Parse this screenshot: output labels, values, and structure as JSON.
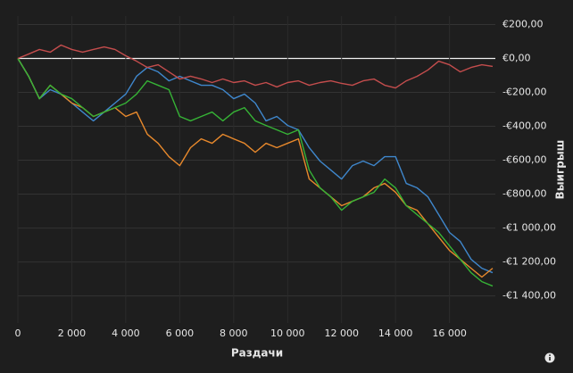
{
  "chart_data": {
    "type": "line",
    "x_label": "Раздачи",
    "y_label": "Выигрыш",
    "x": [
      0,
      400,
      800,
      1200,
      1600,
      2000,
      2400,
      2800,
      3200,
      3600,
      4000,
      4400,
      4800,
      5200,
      5600,
      6000,
      6400,
      6800,
      7200,
      7600,
      8000,
      8400,
      8800,
      9200,
      9600,
      10000,
      10400,
      10800,
      11200,
      11600,
      12000,
      12400,
      12800,
      13200,
      13600,
      14000,
      14400,
      14800,
      15200,
      15600,
      16000,
      16400,
      16800,
      17200,
      17600
    ],
    "series": [
      {
        "color": "#3f87cc",
        "values": [
          0,
          -105,
          -237,
          -184,
          -210,
          -263,
          -316,
          -368,
          -316,
          -263,
          -210,
          -105,
          -53,
          -79,
          -132,
          -105,
          -132,
          -158,
          -158,
          -184,
          -237,
          -210,
          -263,
          -368,
          -342,
          -395,
          -421,
          -526,
          -605,
          -658,
          -711,
          -632,
          -605,
          -632,
          -579,
          -579,
          -737,
          -763,
          -816,
          -921,
          -1026,
          -1079,
          -1184,
          -1237,
          -1263
        ]
      },
      {
        "color": "#e8892c",
        "values": [
          0,
          -105,
          -237,
          -158,
          -210,
          -263,
          -290,
          -342,
          -316,
          -290,
          -342,
          -316,
          -447,
          -500,
          -579,
          -632,
          -526,
          -474,
          -500,
          -447,
          -474,
          -500,
          -553,
          -500,
          -526,
          -500,
          -474,
          -711,
          -763,
          -816,
          -868,
          -842,
          -816,
          -763,
          -737,
          -789,
          -868,
          -895,
          -974,
          -1053,
          -1132,
          -1184,
          -1237,
          -1289,
          -1237
        ]
      },
      {
        "color": "#36b336",
        "values": [
          0,
          -105,
          -237,
          -158,
          -210,
          -237,
          -290,
          -342,
          -316,
          -290,
          -263,
          -210,
          -132,
          -158,
          -184,
          -342,
          -368,
          -342,
          -316,
          -368,
          -316,
          -290,
          -368,
          -395,
          -421,
          -447,
          -421,
          -658,
          -763,
          -816,
          -895,
          -842,
          -816,
          -789,
          -711,
          -763,
          -868,
          -921,
          -974,
          -1026,
          -1105,
          -1184,
          -1263,
          -1316,
          -1342
        ]
      },
      {
        "color": "#c44d4d",
        "values": [
          0,
          26,
          53,
          37,
          79,
          53,
          37,
          53,
          68,
          53,
          16,
          -16,
          -53,
          -37,
          -79,
          -121,
          -105,
          -121,
          -142,
          -121,
          -142,
          -132,
          -158,
          -142,
          -168,
          -142,
          -132,
          -158,
          -142,
          -132,
          -147,
          -158,
          -132,
          -121,
          -158,
          -174,
          -132,
          -105,
          -68,
          -16,
          -37,
          -79,
          -53,
          -37,
          -47
        ]
      }
    ],
    "xlim": [
      0,
      17700
    ],
    "ylim": [
      -1560,
      250
    ],
    "xticks": [
      0,
      {
        "value": 2000,
        "label": "2 000"
      },
      {
        "value": 4000,
        "label": "4 000"
      },
      {
        "value": 6000,
        "label": "6 000"
      },
      {
        "value": 8000,
        "label": "8 000"
      },
      {
        "value": 10000,
        "label": "10 000"
      },
      {
        "value": 12000,
        "label": "12 000"
      },
      {
        "value": 14000,
        "label": "14 000"
      },
      {
        "value": 16000,
        "label": "16 000"
      }
    ],
    "yticks": [
      {
        "value": 200,
        "label": "€200,00"
      },
      {
        "value": 0,
        "label": "€0,00"
      },
      {
        "value": -200,
        "label": "-€200,00"
      },
      {
        "value": -400,
        "label": "-€400,00"
      },
      {
        "value": -600,
        "label": "-€600,00"
      },
      {
        "value": -800,
        "label": "-€800,00"
      },
      {
        "value": -1000,
        "label": "-€1 000,00"
      },
      {
        "value": -1200,
        "label": "-€1 200,00"
      },
      {
        "value": -1400,
        "label": "-€1 400,00"
      }
    ],
    "grid": true
  }
}
